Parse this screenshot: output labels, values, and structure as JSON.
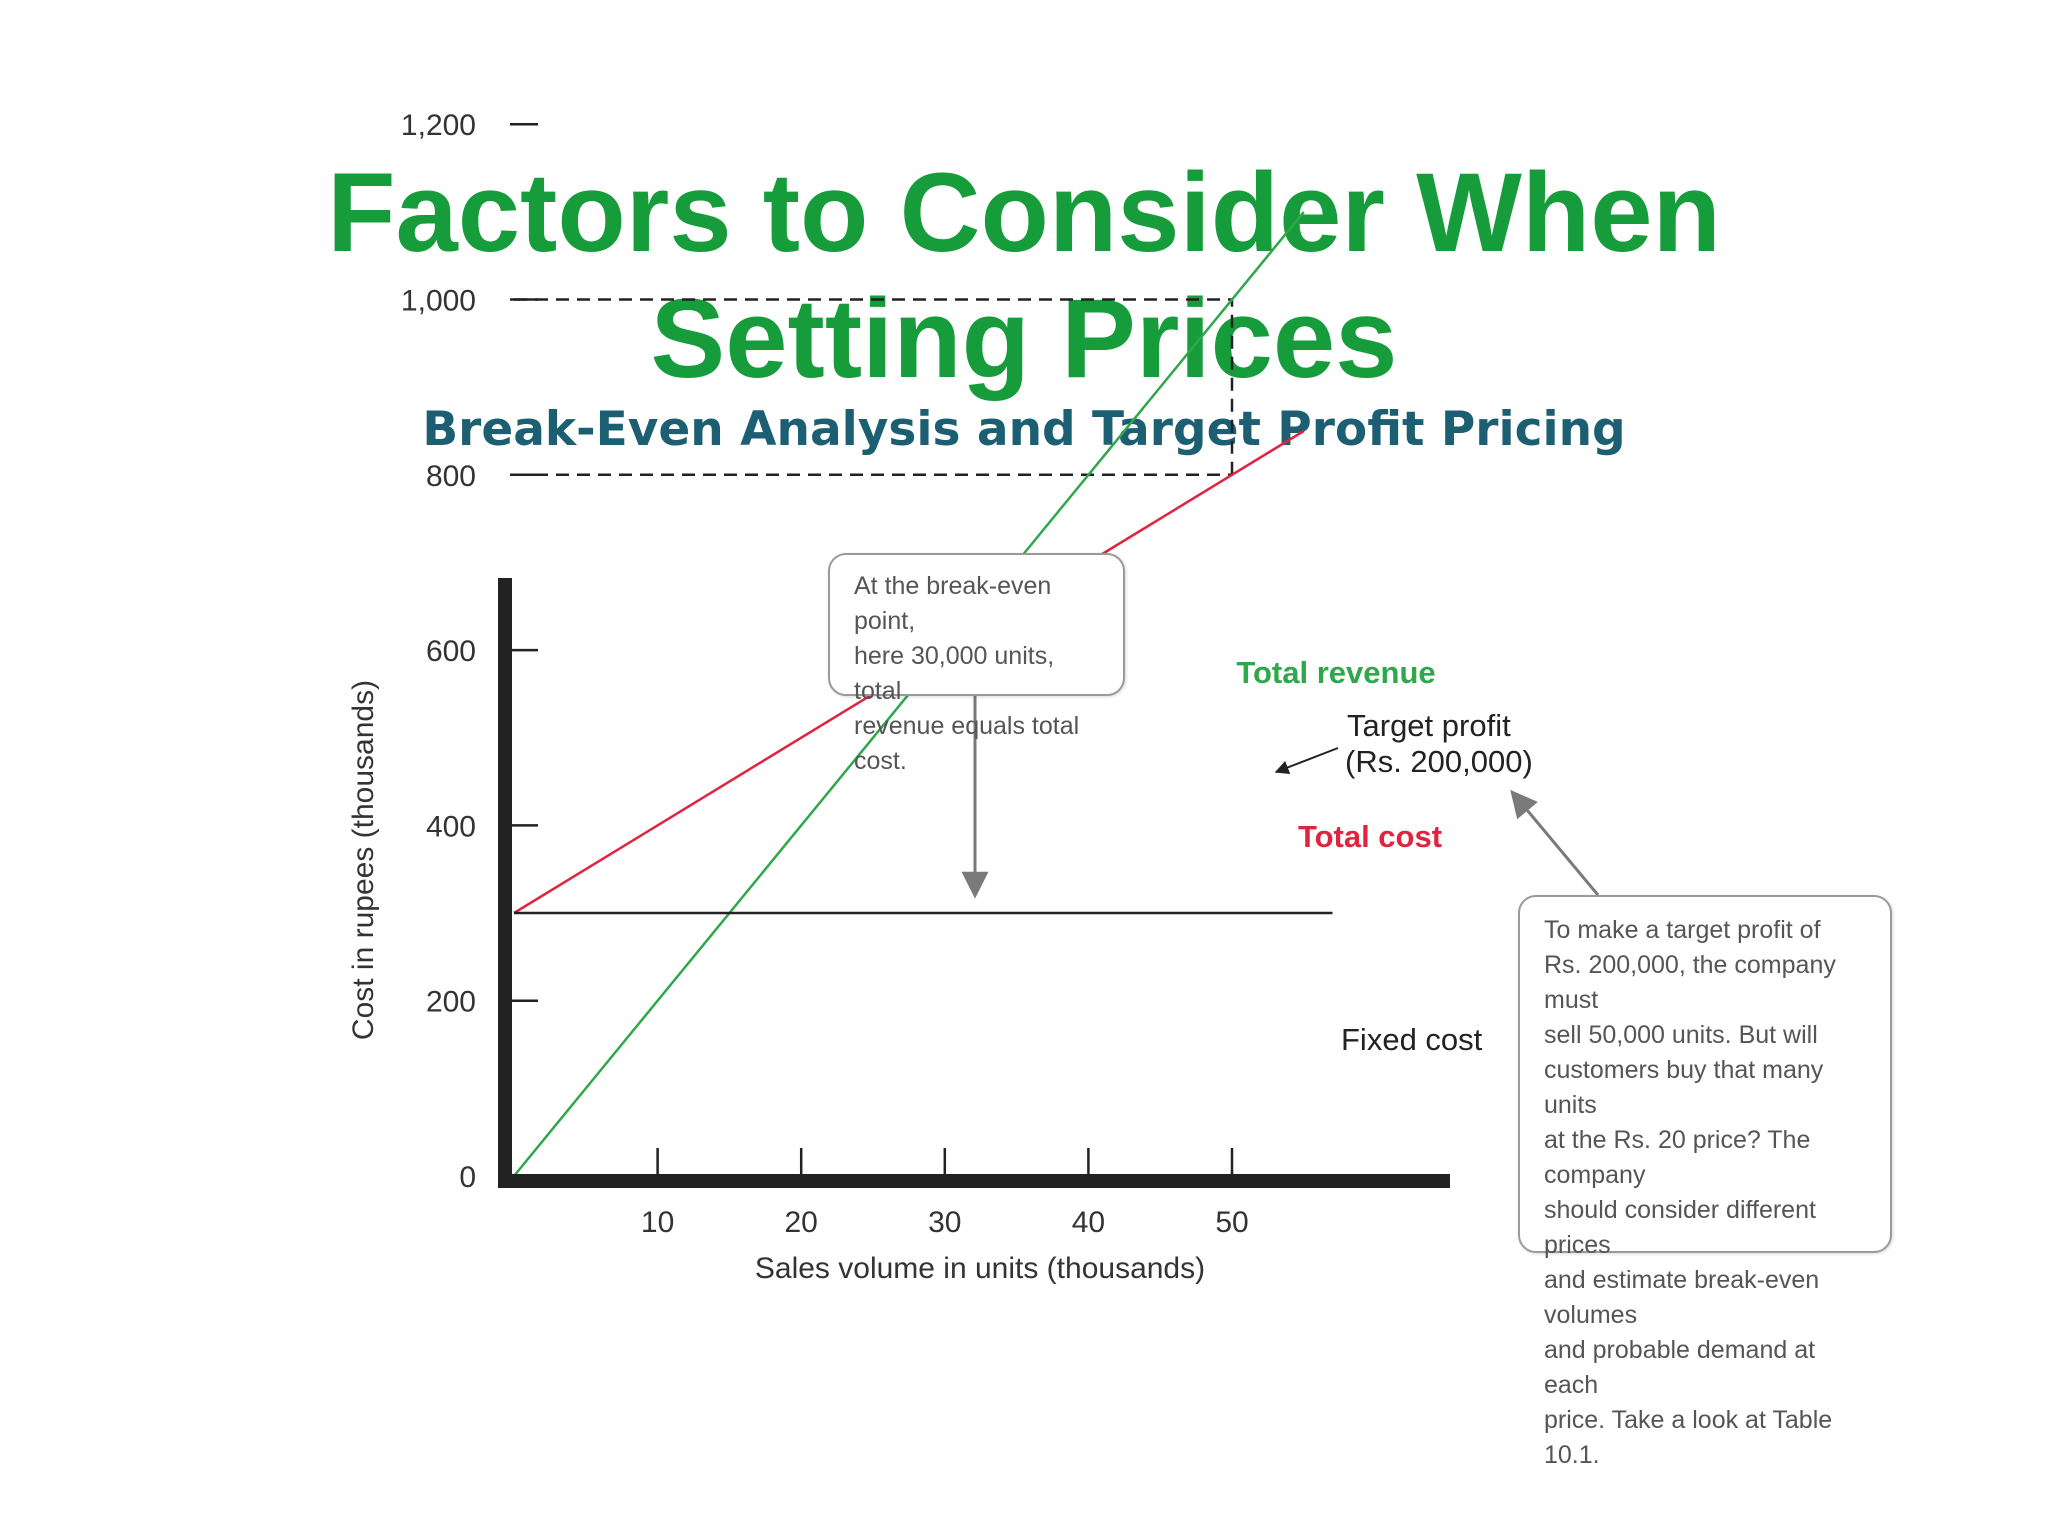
{
  "slide": {
    "title_line1": "Factors to Consider When",
    "title_line2": "Setting Prices",
    "subtitle": "Break-Even Analysis and Target Profit Pricing"
  },
  "colors": {
    "title": "#169c3a",
    "subtitle": "#1d5f72",
    "total_revenue": "#2ea84a",
    "total_cost": "#e0243f",
    "fixed_cost": "#222222",
    "axis": "#222222"
  },
  "chart_data": {
    "type": "line",
    "xlabel": "Sales volume in units (thousands)",
    "ylabel": "Cost in rupees (thousands)",
    "xlim": [
      0,
      65
    ],
    "ylim": [
      0,
      1350
    ],
    "x_ticks": [
      10,
      20,
      30,
      40,
      50
    ],
    "x_tick_labels": [
      "10",
      "20",
      "30",
      "40",
      "50"
    ],
    "y_ticks": [
      0,
      200,
      400,
      600,
      800,
      1000,
      1200
    ],
    "y_tick_labels": [
      "0",
      "200",
      "400",
      "600",
      "800",
      "1,000",
      "1,200"
    ],
    "grid": false,
    "series": [
      {
        "name": "Total revenue",
        "x": [
          0,
          55
        ],
        "y": [
          0,
          1100
        ]
      },
      {
        "name": "Total cost",
        "x": [
          0,
          55
        ],
        "y": [
          300,
          850
        ]
      },
      {
        "name": "Fixed cost",
        "x": [
          0,
          57
        ],
        "y": [
          300,
          300
        ]
      }
    ],
    "reference_lines": [
      {
        "y": 1000,
        "x_end": 50,
        "style": "dashed"
      },
      {
        "y": 800,
        "x_end": 50,
        "style": "dashed"
      },
      {
        "x": 50,
        "y_range": [
          800,
          1000
        ],
        "style": "dashed"
      }
    ],
    "annotations": {
      "target_profit_line1": "Target profit",
      "target_profit_line2": "(Rs. 200,000)",
      "break_even_note": "At the break-even point,\nhere 30,000 units, total\nrevenue equals total cost.",
      "target_profit_note": "To make a target profit of\nRs. 200,000, the company must\nsell 50,000 units. But will\ncustomers buy that many units\nat the Rs. 20 price?  The company\nshould consider different prices\nand estimate break-even volumes\nand probable demand at each\nprice. Take a look at Table 10.1."
    }
  }
}
